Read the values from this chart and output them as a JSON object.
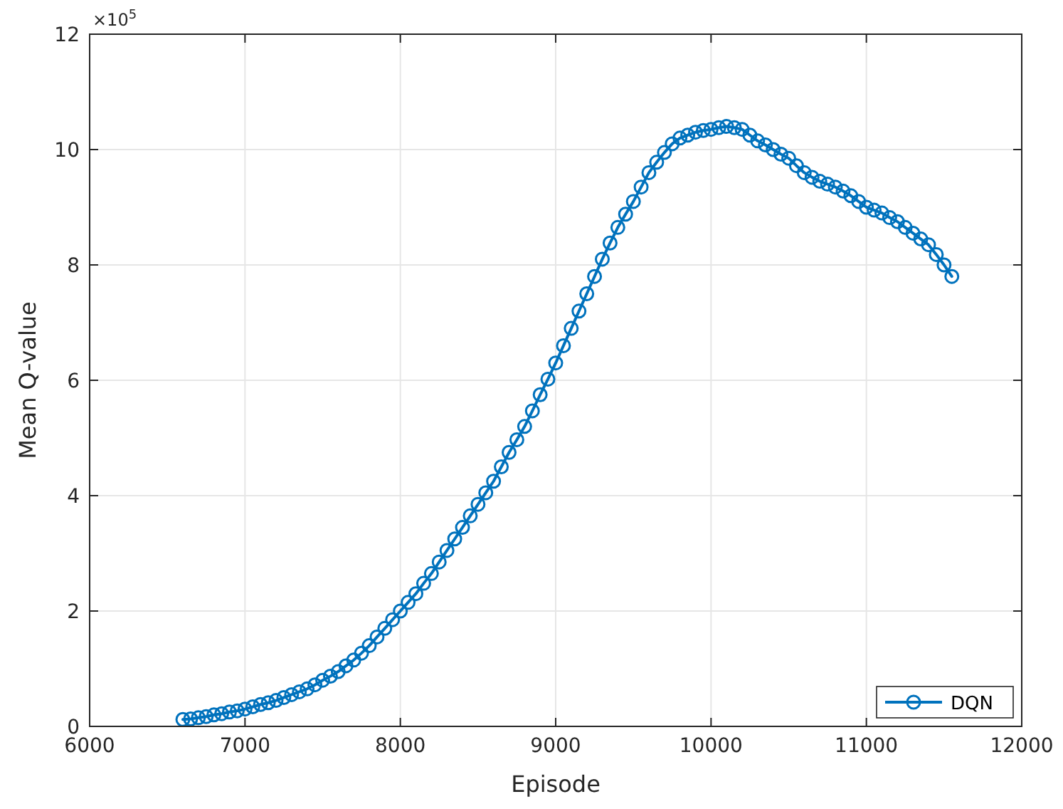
{
  "chart_data": {
    "type": "line",
    "xlabel": "Episode",
    "ylabel": "Mean Q-value",
    "annotations": [
      "×10$^{5}$"
    ],
    "xlim": [
      6000,
      12000
    ],
    "xticks": [
      6000,
      7000,
      8000,
      9000,
      10000,
      11000,
      12000
    ],
    "ylim": [
      0,
      12
    ],
    "yticks": [
      0,
      2,
      4,
      6,
      8,
      10,
      12
    ],
    "grid": true,
    "legend": "bottom right",
    "marker": "circle",
    "line_style": "solid",
    "x": [
      6600,
      6650,
      6700,
      6750,
      6800,
      6850,
      6900,
      6950,
      7000,
      7050,
      7100,
      7150,
      7200,
      7250,
      7300,
      7350,
      7400,
      7450,
      7500,
      7550,
      7600,
      7650,
      7700,
      7750,
      7800,
      7850,
      7900,
      7950,
      8000,
      8050,
      8100,
      8150,
      8200,
      8250,
      8300,
      8350,
      8400,
      8450,
      8500,
      8550,
      8600,
      8650,
      8700,
      8750,
      8800,
      8850,
      8900,
      8950,
      9000,
      9050,
      9100,
      9150,
      9200,
      9250,
      9300,
      9350,
      9400,
      9450,
      9500,
      9550,
      9600,
      9650,
      9700,
      9750,
      9800,
      9850,
      9900,
      9950,
      10000,
      10050,
      10100,
      10150,
      10200,
      10250,
      10300,
      10350,
      10400,
      10450,
      10500,
      10550,
      10600,
      10650,
      10700,
      10750,
      10800,
      10850,
      10900,
      10950,
      11000,
      11050,
      11100,
      11150,
      11200,
      11250,
      11300,
      11350,
      11400,
      11450,
      11500,
      11550
    ],
    "series": [
      {
        "name": "DQN",
        "color": "#0072bd",
        "values": [
          0.12,
          0.13,
          0.15,
          0.17,
          0.2,
          0.22,
          0.25,
          0.27,
          0.3,
          0.34,
          0.38,
          0.41,
          0.45,
          0.5,
          0.55,
          0.6,
          0.65,
          0.72,
          0.8,
          0.87,
          0.95,
          1.05,
          1.15,
          1.27,
          1.4,
          1.55,
          1.7,
          1.85,
          2.0,
          2.15,
          2.3,
          2.48,
          2.65,
          2.85,
          3.05,
          3.25,
          3.45,
          3.65,
          3.85,
          4.05,
          4.25,
          4.5,
          4.75,
          4.97,
          5.2,
          5.47,
          5.75,
          6.02,
          6.3,
          6.6,
          6.9,
          7.2,
          7.5,
          7.8,
          8.1,
          8.38,
          8.65,
          8.88,
          9.1,
          9.35,
          9.6,
          9.78,
          9.95,
          10.1,
          10.2,
          10.25,
          10.3,
          10.33,
          10.35,
          10.38,
          10.4,
          10.38,
          10.35,
          10.25,
          10.15,
          10.08,
          10.0,
          9.92,
          9.85,
          9.72,
          9.6,
          9.52,
          9.45,
          9.4,
          9.35,
          9.28,
          9.2,
          9.1,
          9.0,
          8.95,
          8.9,
          8.82,
          8.75,
          8.65,
          8.55,
          8.45,
          8.35,
          8.18,
          8.0,
          7.8
        ]
      }
    ]
  }
}
